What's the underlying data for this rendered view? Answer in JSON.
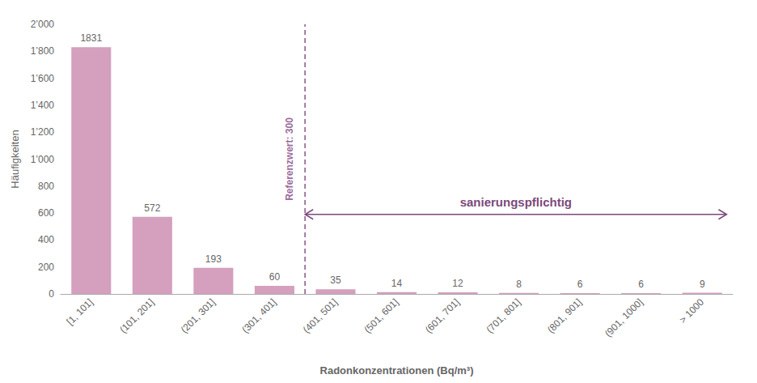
{
  "chart_data": {
    "type": "bar",
    "categories": [
      "[1, 101]",
      "(101, 201]",
      "(201, 301]",
      "(301, 401]",
      "(401, 501]",
      "(501, 601]",
      "(601, 701]",
      "(701, 801]",
      "(801, 901]",
      "(901, 1000]",
      "> 1000"
    ],
    "values": [
      1831,
      572,
      193,
      60,
      35,
      14,
      12,
      8,
      6,
      6,
      9
    ],
    "color": "#d4a0be",
    "xlabel": "Radonkonzentrationen (Bq/m³)",
    "ylabel": "Häufigkeiten",
    "ylim": [
      0,
      2000
    ],
    "yticks": [
      0,
      200,
      400,
      600,
      800,
      {
        "value": 1000,
        "label": "1’000"
      },
      {
        "value": 1200,
        "label": "1’200"
      },
      {
        "value": 1400,
        "label": "1’400"
      },
      {
        "value": 1600,
        "label": "1’600"
      },
      {
        "value": 1800,
        "label": "1’800"
      },
      {
        "value": 2000,
        "label": "2’000"
      }
    ],
    "grid": false,
    "data_labels": true,
    "annotations": [
      {
        "text": "Referenzwert: 300",
        "color": "#9b6b9b",
        "after_category": "(301, 401]",
        "y": 1000
      },
      {
        "text": "sanierungspflichtig",
        "color": "#7a4a7a",
        "y": 590
      }
    ]
  }
}
